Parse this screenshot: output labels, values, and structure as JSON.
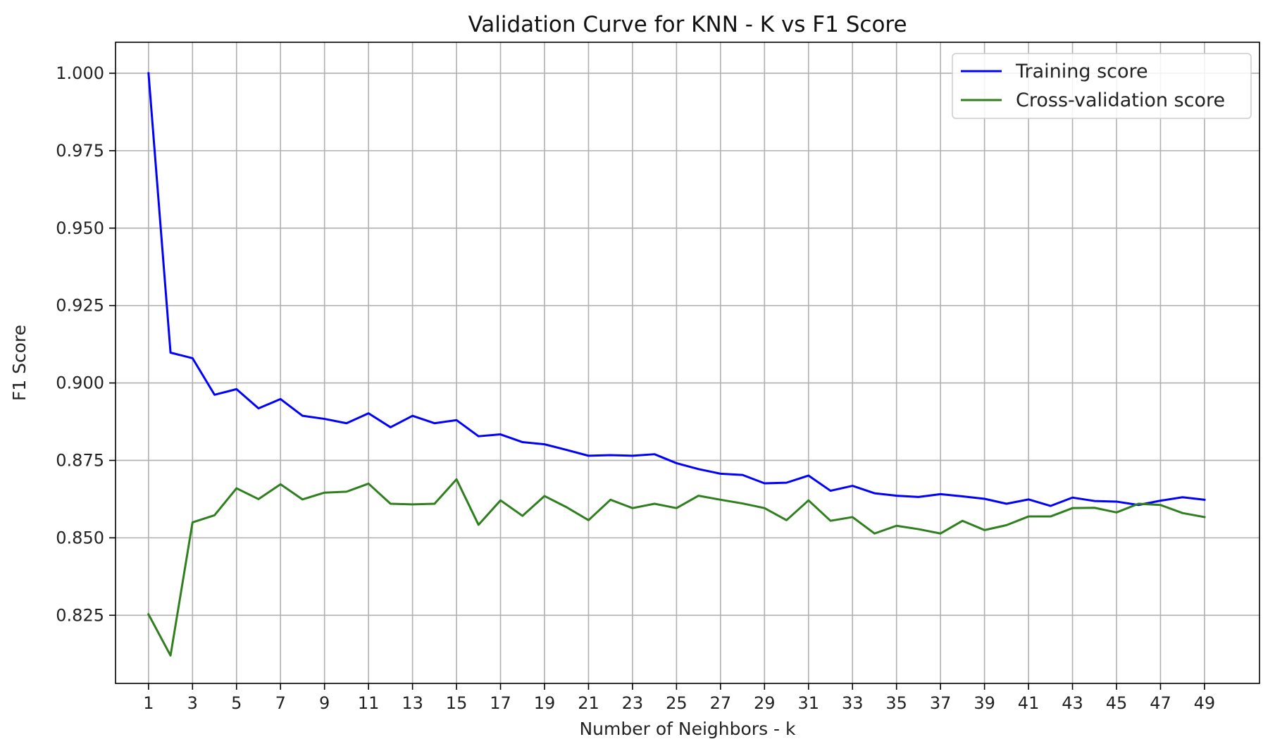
{
  "chart_data": {
    "type": "line",
    "title": "Validation Curve for KNN - K vs F1 Score",
    "xlabel": "Number of Neighbors - k",
    "ylabel": "F1 Score",
    "xlim": [
      -0.5,
      51.5
    ],
    "ylim": [
      0.803,
      1.01
    ],
    "x_ticks": [
      1,
      3,
      5,
      7,
      9,
      11,
      13,
      15,
      17,
      19,
      21,
      23,
      25,
      27,
      29,
      31,
      33,
      35,
      37,
      39,
      41,
      43,
      45,
      47,
      49
    ],
    "y_ticks": [
      0.825,
      0.85,
      0.875,
      0.9,
      0.925,
      0.95,
      0.975,
      1.0
    ],
    "y_tick_labels": [
      "0.825",
      "0.850",
      "0.875",
      "0.900",
      "0.925",
      "0.950",
      "0.975",
      "1.000"
    ],
    "grid": true,
    "legend_position": "top-right",
    "x": [
      1,
      2,
      3,
      4,
      5,
      6,
      7,
      8,
      9,
      10,
      11,
      12,
      13,
      14,
      15,
      16,
      17,
      18,
      19,
      20,
      21,
      22,
      23,
      24,
      25,
      26,
      27,
      28,
      29,
      30,
      31,
      32,
      33,
      34,
      35,
      36,
      37,
      38,
      39,
      40,
      41,
      42,
      43,
      44,
      45,
      46,
      47,
      48,
      49
    ],
    "series": [
      {
        "name": "Training score",
        "color": "#0000ff",
        "values": [
          1.0,
          0.9098,
          0.908,
          0.8962,
          0.898,
          0.8918,
          0.8948,
          0.8894,
          0.8884,
          0.887,
          0.8902,
          0.8857,
          0.8894,
          0.887,
          0.888,
          0.8828,
          0.8834,
          0.8809,
          0.8802,
          0.8784,
          0.8765,
          0.8767,
          0.8765,
          0.877,
          0.8741,
          0.8722,
          0.8707,
          0.8703,
          0.8676,
          0.8678,
          0.8701,
          0.8652,
          0.8668,
          0.8644,
          0.8636,
          0.8632,
          0.8641,
          0.8634,
          0.8626,
          0.861,
          0.8624,
          0.8603,
          0.863,
          0.8619,
          0.8617,
          0.8606,
          0.862,
          0.8631,
          0.8623
        ]
      },
      {
        "name": "Cross-validation score",
        "color": "#2f7f1f",
        "values": [
          0.8253,
          0.812,
          0.855,
          0.8573,
          0.866,
          0.8625,
          0.8673,
          0.8624,
          0.8646,
          0.8649,
          0.8675,
          0.861,
          0.8608,
          0.861,
          0.8689,
          0.8542,
          0.8621,
          0.8571,
          0.8635,
          0.8599,
          0.8557,
          0.8623,
          0.8596,
          0.861,
          0.8596,
          0.8636,
          0.8623,
          0.8611,
          0.8596,
          0.8557,
          0.8621,
          0.8555,
          0.8567,
          0.8514,
          0.8539,
          0.8528,
          0.8514,
          0.8555,
          0.8525,
          0.8541,
          0.8569,
          0.8569,
          0.8596,
          0.8597,
          0.8582,
          0.861,
          0.8606,
          0.858,
          0.8567
        ]
      }
    ]
  },
  "colors": {
    "grid": "#b0b0b0",
    "axes": "#000000",
    "legend_border": "#cccccc"
  }
}
